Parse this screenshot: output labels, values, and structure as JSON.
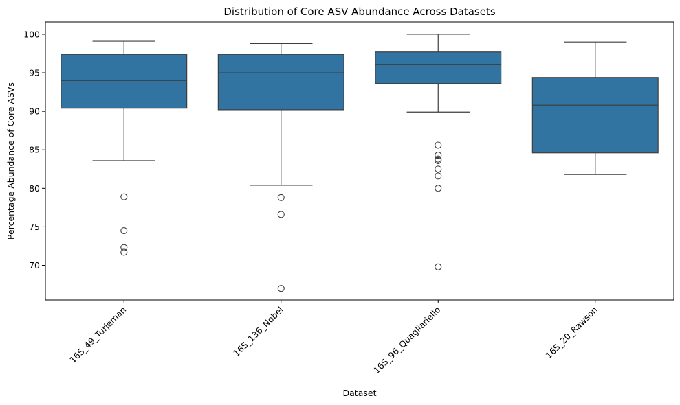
{
  "chart_data": {
    "type": "box",
    "title": "Distribution of Core ASV Abundance Across Datasets",
    "xlabel": "Dataset",
    "ylabel": "Percentage Abundance of Core ASVs",
    "ylim": [
      65.5,
      101.6
    ],
    "yticks": [
      70,
      75,
      80,
      85,
      90,
      95,
      100
    ],
    "grid": false,
    "legend": "none",
    "box_color": "#3274a1",
    "categories": [
      "16S_49_Turjeman",
      "16S_136_Nobel",
      "16S_96_Quagliariello",
      "16S_20_Rawson"
    ],
    "boxes": [
      {
        "category": "16S_49_Turjeman",
        "whisker_low": 83.6,
        "q1": 90.4,
        "median": 94.0,
        "q3": 97.4,
        "whisker_high": 99.1,
        "outliers": [
          78.9,
          74.5,
          72.3,
          71.7
        ]
      },
      {
        "category": "16S_136_Nobel",
        "whisker_low": 80.4,
        "q1": 90.2,
        "median": 95.0,
        "q3": 97.4,
        "whisker_high": 98.8,
        "outliers": [
          78.8,
          76.6,
          67.0
        ]
      },
      {
        "category": "16S_96_Quagliariello",
        "whisker_low": 89.9,
        "q1": 93.6,
        "median": 96.1,
        "q3": 97.7,
        "whisker_high": 100.0,
        "outliers": [
          85.6,
          84.3,
          83.8,
          83.6,
          82.5,
          81.6,
          80.0,
          69.8
        ]
      },
      {
        "category": "16S_20_Rawson",
        "whisker_low": 81.8,
        "q1": 84.6,
        "median": 90.8,
        "q3": 94.4,
        "whisker_high": 99.0,
        "outliers": []
      }
    ]
  }
}
